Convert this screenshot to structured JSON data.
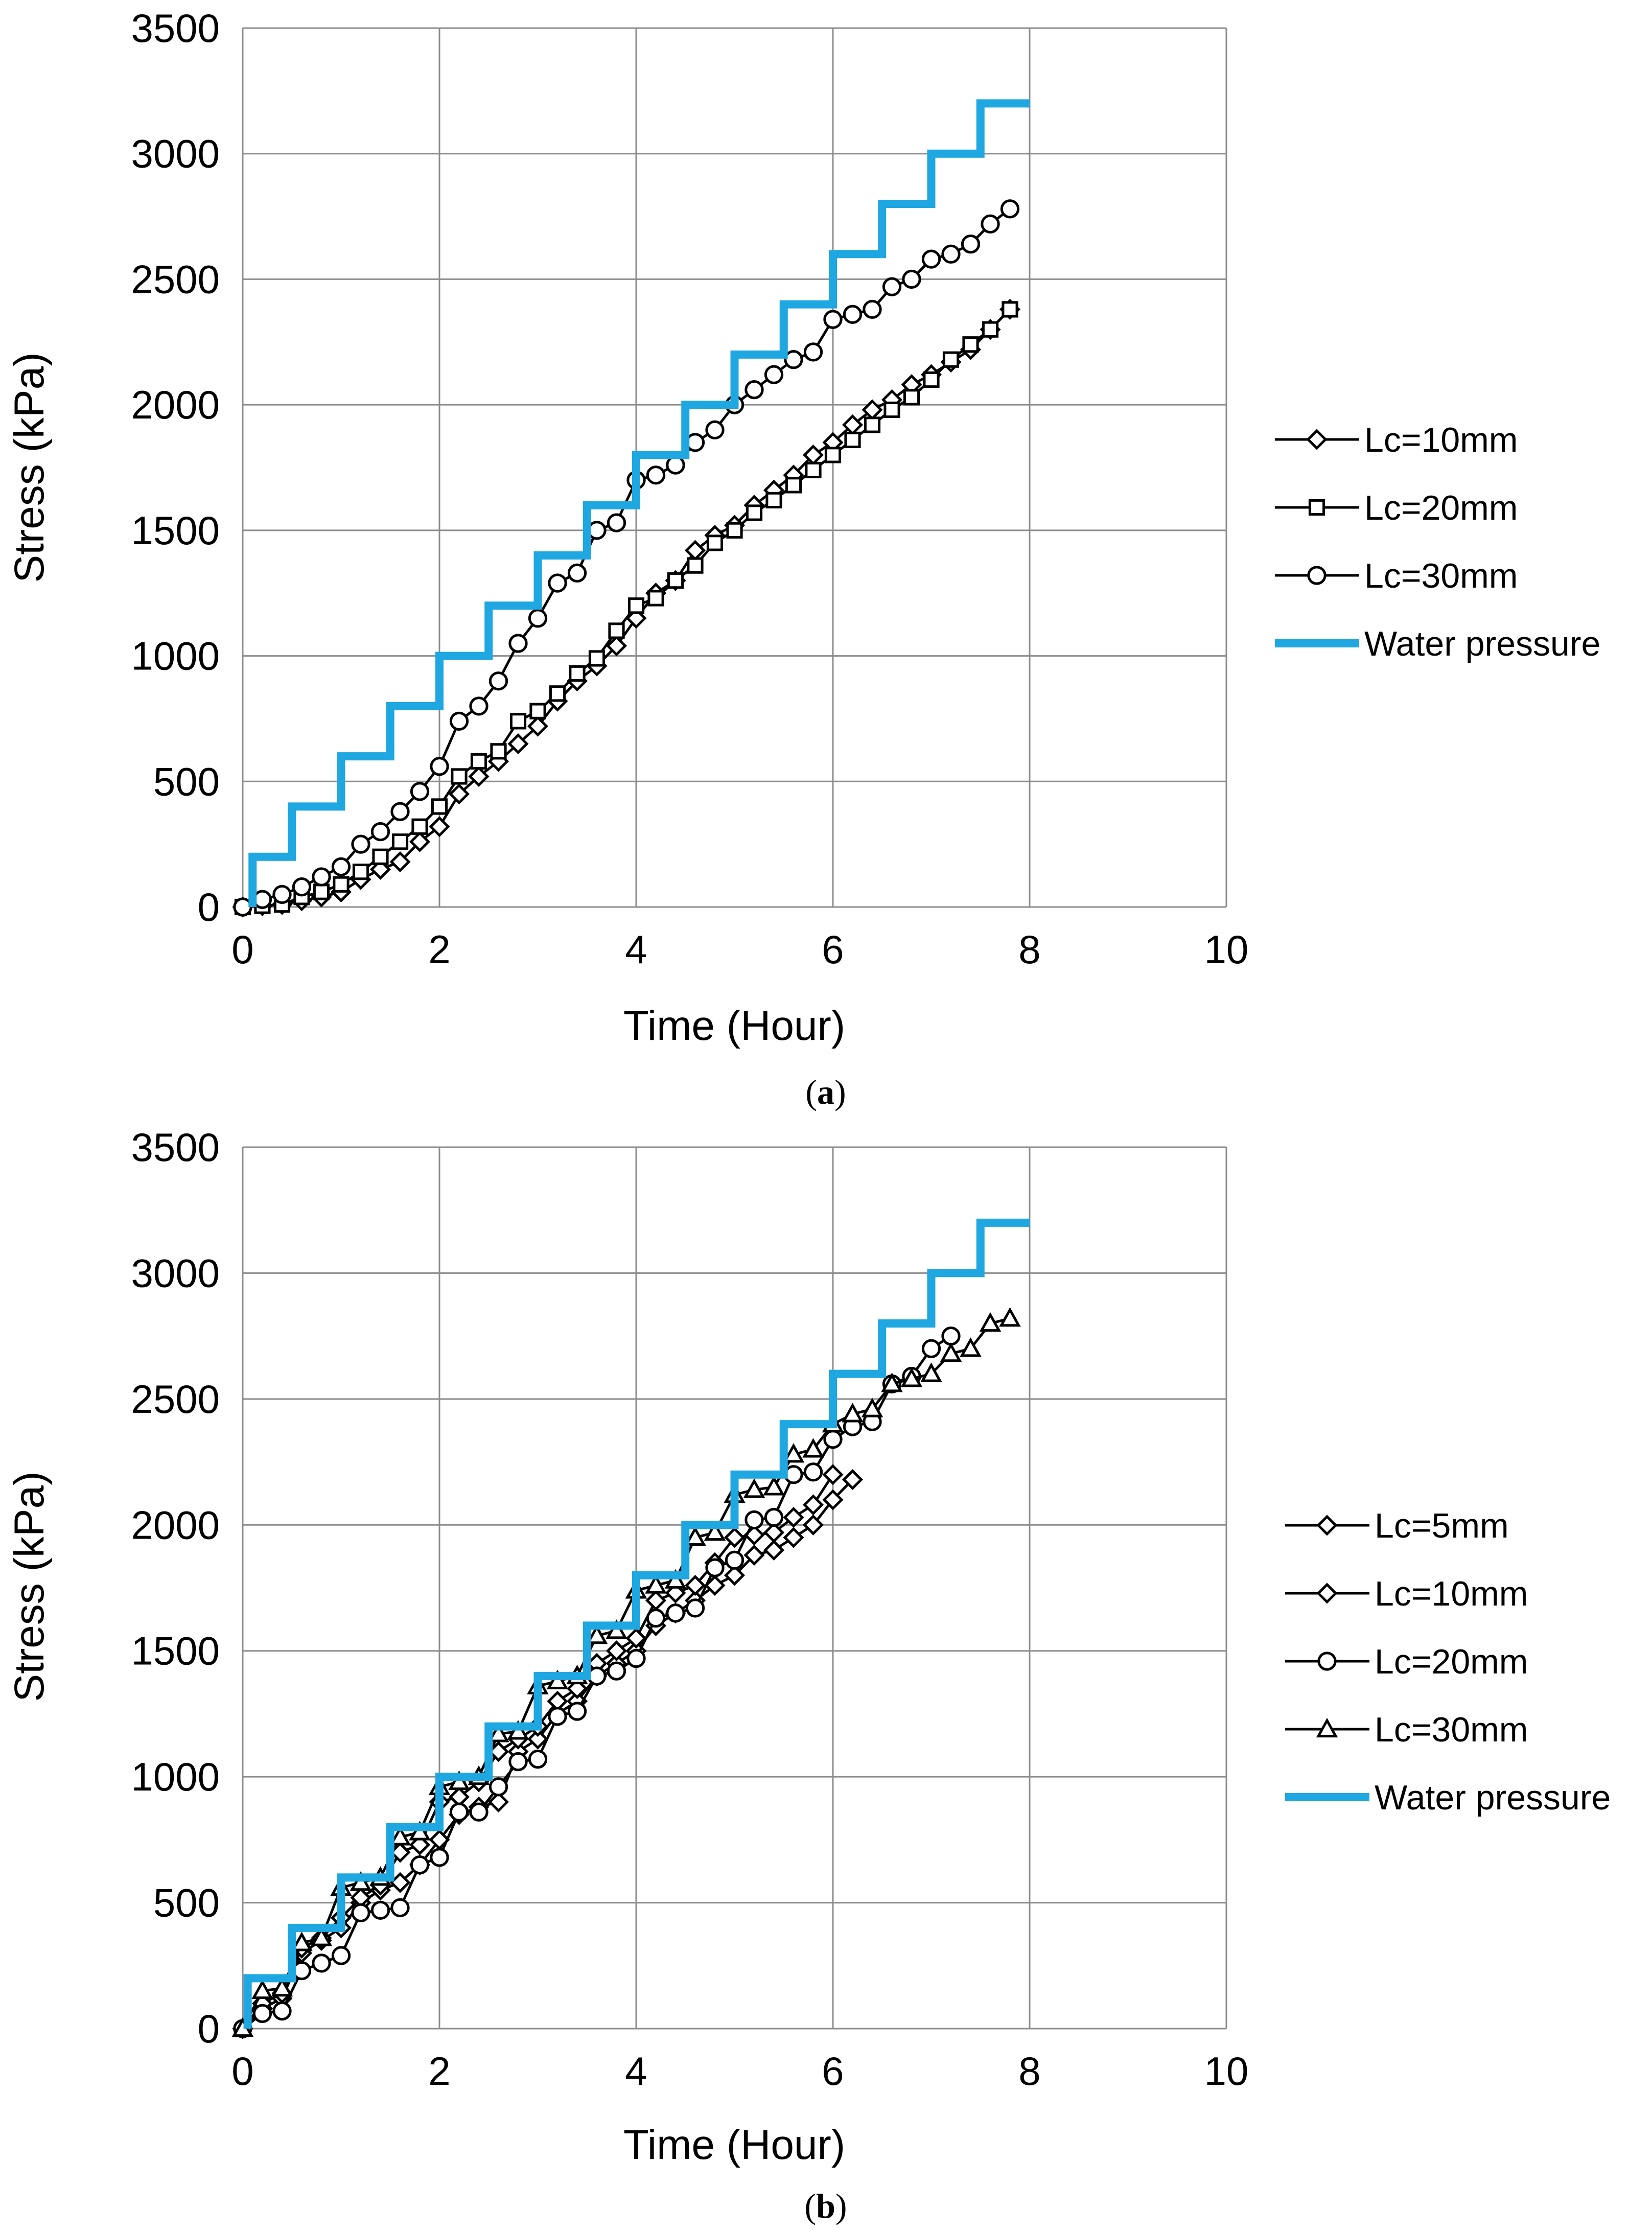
{
  "chart_data": [
    {
      "type": "line",
      "panel": "a",
      "caption_label": "a",
      "xlabel": "Time (Hour)",
      "ylabel": "Stress (kPa)",
      "xlim": [
        0,
        10
      ],
      "ylim": [
        0,
        3500
      ],
      "xticks": [
        "0",
        "2",
        "4",
        "6",
        "8",
        "10"
      ],
      "yticks": [
        "0",
        "500",
        "1000",
        "1500",
        "2000",
        "2500",
        "3000",
        "3500"
      ],
      "grid": true,
      "legend_position": "right",
      "series": [
        {
          "name": "Lc=10mm",
          "marker": "diamond",
          "x": [
            0,
            0.2,
            0.4,
            0.6,
            0.8,
            1.0,
            1.2,
            1.4,
            1.6,
            1.8,
            2.0,
            2.2,
            2.4,
            2.6,
            2.8,
            3.0,
            3.2,
            3.4,
            3.6,
            3.8,
            4.0,
            4.2,
            4.4,
            4.6,
            4.8,
            5.0,
            5.2,
            5.4,
            5.6,
            5.8,
            6.0,
            6.2,
            6.4,
            6.6,
            6.8,
            7.0,
            7.2,
            7.4,
            7.6,
            7.8
          ],
          "y": [
            0,
            5,
            10,
            25,
            40,
            60,
            110,
            150,
            180,
            260,
            320,
            450,
            520,
            580,
            650,
            720,
            820,
            900,
            960,
            1040,
            1150,
            1250,
            1300,
            1420,
            1480,
            1520,
            1600,
            1660,
            1720,
            1800,
            1850,
            1920,
            1980,
            2020,
            2080,
            2120,
            2170,
            2220,
            2300,
            2380
          ]
        },
        {
          "name": "Lc=20mm",
          "marker": "square",
          "x": [
            0,
            0.2,
            0.4,
            0.6,
            0.8,
            1.0,
            1.2,
            1.4,
            1.6,
            1.8,
            2.0,
            2.2,
            2.4,
            2.6,
            2.8,
            3.0,
            3.2,
            3.4,
            3.6,
            3.8,
            4.0,
            4.2,
            4.4,
            4.6,
            4.8,
            5.0,
            5.2,
            5.4,
            5.6,
            5.8,
            6.0,
            6.2,
            6.4,
            6.6,
            6.8,
            7.0,
            7.2,
            7.4,
            7.6,
            7.8
          ],
          "y": [
            0,
            5,
            10,
            40,
            60,
            90,
            140,
            200,
            260,
            320,
            400,
            520,
            580,
            620,
            740,
            780,
            850,
            930,
            990,
            1100,
            1200,
            1230,
            1300,
            1360,
            1450,
            1500,
            1570,
            1620,
            1680,
            1740,
            1800,
            1860,
            1920,
            1980,
            2030,
            2100,
            2180,
            2240,
            2300,
            2380
          ]
        },
        {
          "name": "Lc=30mm",
          "marker": "circle",
          "x": [
            0,
            0.2,
            0.4,
            0.6,
            0.8,
            1.0,
            1.2,
            1.4,
            1.6,
            1.8,
            2.0,
            2.2,
            2.4,
            2.6,
            2.8,
            3.0,
            3.2,
            3.4,
            3.6,
            3.8,
            4.0,
            4.2,
            4.4,
            4.6,
            4.8,
            5.0,
            5.2,
            5.4,
            5.6,
            5.8,
            6.0,
            6.2,
            6.4,
            6.6,
            6.8,
            7.0,
            7.2,
            7.4,
            7.6,
            7.8
          ],
          "y": [
            0,
            30,
            50,
            80,
            120,
            160,
            250,
            300,
            380,
            460,
            560,
            740,
            800,
            900,
            1050,
            1150,
            1290,
            1330,
            1500,
            1530,
            1700,
            1720,
            1760,
            1850,
            1900,
            2000,
            2060,
            2120,
            2180,
            2210,
            2340,
            2360,
            2380,
            2470,
            2500,
            2580,
            2600,
            2640,
            2720,
            2780
          ]
        },
        {
          "name": "Water pressure",
          "marker": "none",
          "color": "#1ea7e1",
          "x": [
            0.1,
            0.1,
            0.5,
            0.5,
            1.0,
            1.0,
            1.5,
            1.5,
            2.0,
            2.0,
            2.5,
            2.5,
            3.0,
            3.0,
            3.5,
            3.5,
            4.0,
            4.0,
            4.5,
            4.5,
            5.0,
            5.0,
            5.5,
            5.5,
            6.0,
            6.0,
            6.5,
            6.5,
            7.0,
            7.0,
            7.5,
            7.5,
            8.0
          ],
          "y": [
            0,
            200,
            200,
            400,
            400,
            600,
            600,
            800,
            800,
            1000,
            1000,
            1200,
            1200,
            1400,
            1400,
            1600,
            1600,
            1800,
            1800,
            2000,
            2000,
            2200,
            2200,
            2400,
            2400,
            2600,
            2600,
            2800,
            2800,
            3000,
            3000,
            3200,
            3200
          ]
        }
      ]
    },
    {
      "type": "line",
      "panel": "b",
      "caption_label": "b",
      "xlabel": "Time (Hour)",
      "ylabel": "Stress (kPa)",
      "xlim": [
        0,
        10
      ],
      "ylim": [
        0,
        3500
      ],
      "xticks": [
        "0",
        "2",
        "4",
        "6",
        "8",
        "10"
      ],
      "yticks": [
        "0",
        "500",
        "1000",
        "1500",
        "2000",
        "2500",
        "3000",
        "3500"
      ],
      "grid": true,
      "legend_position": "right",
      "series": [
        {
          "name": "Lc=5mm",
          "marker": "diamond",
          "x": [
            0,
            0.2,
            0.4,
            0.6,
            0.8,
            1.0,
            1.2,
            1.4,
            1.6,
            1.8,
            2.0,
            2.2,
            2.4,
            2.6,
            2.8,
            3.0,
            3.2,
            3.4,
            3.6,
            3.8,
            4.0,
            4.2,
            4.4,
            4.6,
            4.8,
            5.0,
            5.2,
            5.4,
            5.6,
            5.8,
            6.0,
            6.2
          ],
          "y": [
            0,
            80,
            120,
            300,
            350,
            400,
            500,
            550,
            580,
            650,
            750,
            850,
            880,
            900,
            1100,
            1150,
            1250,
            1300,
            1400,
            1450,
            1500,
            1600,
            1650,
            1700,
            1760,
            1800,
            1880,
            1900,
            1950,
            2000,
            2100,
            2180
          ]
        },
        {
          "name": "Lc=10mm",
          "marker": "diamond",
          "x": [
            0,
            0.2,
            0.4,
            0.6,
            0.8,
            1.0,
            1.2,
            1.4,
            1.6,
            1.8,
            2.0,
            2.2,
            2.4,
            2.6,
            2.8,
            3.0,
            3.2,
            3.4,
            3.6,
            3.8,
            4.0,
            4.2,
            4.4,
            4.6,
            4.8,
            5.0,
            5.2,
            5.4,
            5.6,
            5.8,
            6.0
          ],
          "y": [
            0,
            100,
            140,
            320,
            360,
            440,
            520,
            570,
            700,
            730,
            900,
            920,
            980,
            1100,
            1150,
            1200,
            1300,
            1350,
            1450,
            1500,
            1550,
            1700,
            1730,
            1760,
            1850,
            1950,
            1960,
            1970,
            2030,
            2080,
            2200
          ]
        },
        {
          "name": "Lc=20mm",
          "marker": "circle",
          "x": [
            0,
            0.2,
            0.4,
            0.6,
            0.8,
            1.0,
            1.2,
            1.4,
            1.6,
            1.8,
            2.0,
            2.2,
            2.4,
            2.6,
            2.8,
            3.0,
            3.2,
            3.4,
            3.6,
            3.8,
            4.0,
            4.2,
            4.4,
            4.6,
            4.8,
            5.0,
            5.2,
            5.4,
            5.6,
            5.8,
            6.0,
            6.2,
            6.4,
            6.6,
            6.8,
            7.0,
            7.2
          ],
          "y": [
            0,
            60,
            70,
            230,
            260,
            290,
            460,
            470,
            480,
            650,
            680,
            860,
            860,
            960,
            1060,
            1070,
            1240,
            1260,
            1400,
            1420,
            1470,
            1630,
            1650,
            1670,
            1830,
            1860,
            2020,
            2030,
            2200,
            2210,
            2340,
            2390,
            2410,
            2560,
            2590,
            2700,
            2750
          ]
        },
        {
          "name": "Lc=30mm",
          "marker": "triangle",
          "x": [
            0,
            0.2,
            0.4,
            0.6,
            0.8,
            1.0,
            1.2,
            1.4,
            1.6,
            1.8,
            2.0,
            2.2,
            2.4,
            2.6,
            2.8,
            3.0,
            3.2,
            3.4,
            3.6,
            3.8,
            4.0,
            4.2,
            4.4,
            4.6,
            4.8,
            5.0,
            5.2,
            5.4,
            5.6,
            5.8,
            6.0,
            6.2,
            6.4,
            6.6,
            6.8,
            7.0,
            7.2,
            7.4,
            7.6,
            7.8
          ],
          "y": [
            0,
            150,
            160,
            340,
            360,
            560,
            580,
            600,
            760,
            780,
            960,
            980,
            1000,
            1170,
            1180,
            1360,
            1380,
            1400,
            1560,
            1580,
            1740,
            1760,
            1780,
            1950,
            1970,
            2120,
            2140,
            2150,
            2280,
            2300,
            2400,
            2440,
            2460,
            2560,
            2580,
            2600,
            2680,
            2700,
            2800,
            2820
          ]
        },
        {
          "name": "Water pressure",
          "marker": "none",
          "color": "#1ea7e1",
          "x": [
            0.05,
            0.05,
            0.5,
            0.5,
            1.0,
            1.0,
            1.5,
            1.5,
            2.0,
            2.0,
            2.5,
            2.5,
            3.0,
            3.0,
            3.5,
            3.5,
            4.0,
            4.0,
            4.5,
            4.5,
            5.0,
            5.0,
            5.5,
            5.5,
            6.0,
            6.0,
            6.5,
            6.5,
            7.0,
            7.0,
            7.5,
            7.5,
            8.0
          ],
          "y": [
            0,
            200,
            200,
            400,
            400,
            600,
            600,
            800,
            800,
            1000,
            1000,
            1200,
            1200,
            1400,
            1400,
            1600,
            1600,
            1800,
            1800,
            2000,
            2000,
            2200,
            2200,
            2400,
            2400,
            2600,
            2600,
            2800,
            2800,
            3000,
            3000,
            3200,
            3200
          ]
        }
      ]
    }
  ]
}
